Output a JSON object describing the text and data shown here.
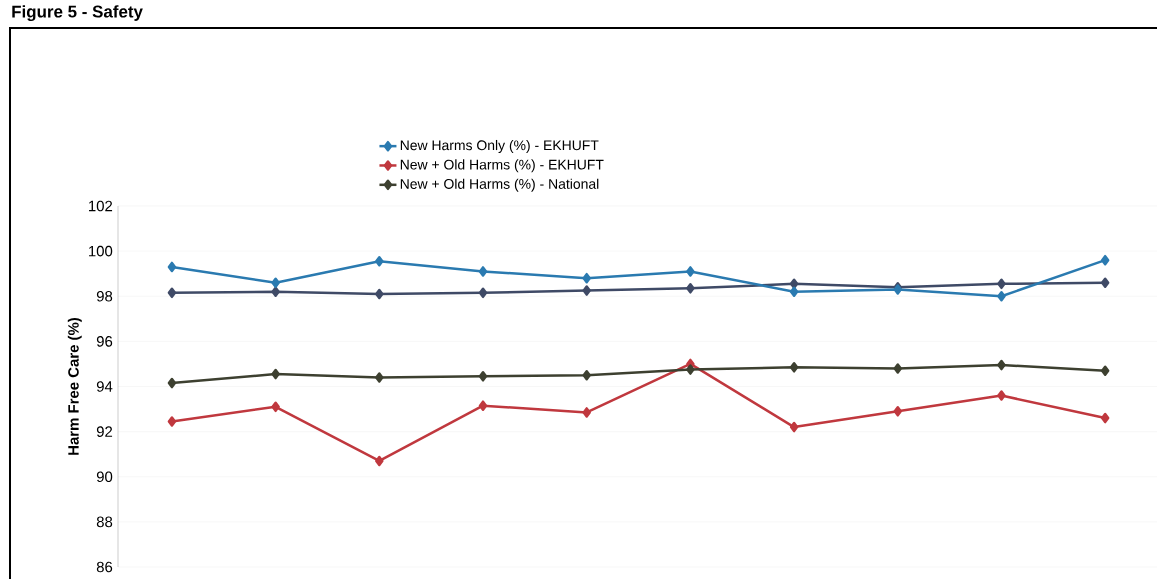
{
  "chart_data": {
    "type": "line",
    "title": "Figure 5 - Safety",
    "ylabel": "Harm Free Care (%)",
    "categories": [
      null,
      null,
      null,
      null,
      null,
      null,
      null,
      null,
      null,
      null
    ],
    "series": [
      {
        "name": "New Harms Only (%) - EKHUFT",
        "color": "#2a7ab0",
        "values": [
          99.3,
          98.6,
          99.55,
          99.1,
          98.8,
          99.1,
          98.2,
          98.3,
          98.0,
          99.6
        ]
      },
      {
        "name": "New + Old Harms (%) - EKHUFT",
        "color": "#c0383e",
        "values": [
          92.45,
          93.1,
          90.7,
          93.15,
          92.85,
          95.0,
          92.2,
          92.9,
          93.6,
          92.6
        ]
      },
      {
        "name": "New + Old Harms (%) - National",
        "color": "#3d4030",
        "values": [
          94.15,
          94.55,
          94.4,
          94.45,
          94.5,
          94.75,
          94.85,
          94.8,
          94.95,
          94.7
        ]
      },
      {
        "color": "#3f4a66",
        "values": [
          98.15,
          98.2,
          98.1,
          98.15,
          98.25,
          98.35,
          98.55,
          98.4,
          98.55,
          98.6
        ]
      }
    ],
    "ylim": [
      86,
      102
    ],
    "yticks": [
      86,
      88,
      90,
      92,
      94,
      96,
      98,
      100,
      102
    ],
    "grid": "y",
    "legend": "top",
    "marker": "diamond",
    "line_style": "solid",
    "tick_labels": "y"
  }
}
